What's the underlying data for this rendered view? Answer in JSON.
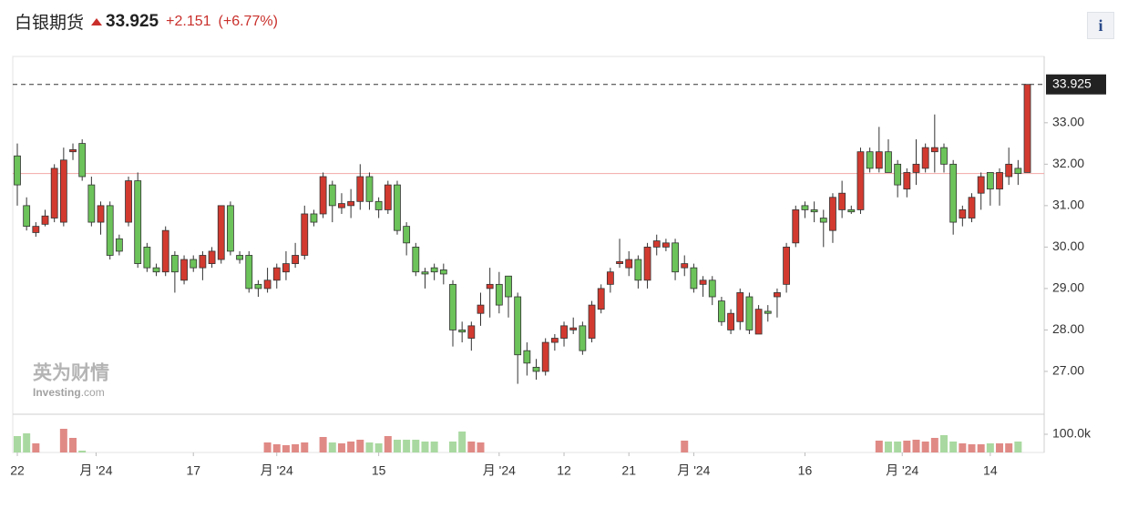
{
  "header": {
    "title": "白银期货",
    "price": "33.925",
    "change": "+2.151",
    "change_pct": "(+6.77%)",
    "info": "i"
  },
  "watermark": {
    "cn": "英为财情",
    "en": "Investing",
    "en_suffix": ".com"
  },
  "chart_data": {
    "type": "candlestick",
    "open": [
      32.2,
      31.0,
      30.35,
      30.55,
      30.7,
      30.6,
      32.3,
      32.5,
      31.5,
      30.6,
      31.0,
      30.2,
      30.6,
      31.6,
      30.0,
      29.5,
      29.4,
      29.8,
      29.2,
      29.7,
      29.5,
      29.6,
      29.7,
      31.0,
      29.8,
      29.8,
      29.1,
      29.0,
      29.2,
      29.4,
      29.6,
      29.8,
      30.8,
      30.8,
      31.5,
      30.95,
      31.0,
      31.1,
      31.7,
      31.1,
      30.9,
      31.5,
      30.5,
      30.0,
      29.4,
      29.5,
      29.45,
      29.1,
      28.0,
      27.8,
      28.4,
      29.0,
      29.1,
      29.3,
      28.8,
      27.5,
      27.1,
      27.0,
      27.7,
      27.8,
      28.0,
      28.1,
      27.8,
      28.5,
      29.1,
      29.6,
      29.5,
      29.7,
      29.2,
      30.0,
      30.0,
      30.1,
      29.5,
      29.5,
      29.1,
      29.2,
      28.7,
      28.0,
      28.2,
      28.8,
      27.9,
      28.45,
      28.8,
      29.1,
      30.1,
      31.0,
      30.9,
      30.7,
      30.4,
      30.9,
      30.9,
      30.9,
      32.3,
      31.9,
      32.3,
      32.0,
      31.4,
      31.8,
      31.9,
      32.3,
      32.4,
      32.0,
      30.7,
      30.7,
      31.3,
      31.8,
      31.4,
      31.7,
      31.9,
      31.8
    ],
    "high": [
      32.5,
      31.2,
      30.6,
      30.9,
      32.0,
      32.4,
      32.5,
      32.6,
      31.7,
      31.1,
      31.1,
      30.3,
      31.7,
      31.8,
      30.1,
      29.6,
      30.5,
      29.9,
      29.8,
      29.8,
      29.9,
      30.0,
      31.0,
      31.1,
      29.9,
      29.9,
      29.2,
      29.5,
      29.6,
      29.9,
      30.1,
      31.0,
      30.9,
      31.8,
      31.6,
      31.3,
      31.4,
      32.0,
      31.8,
      31.2,
      31.6,
      31.6,
      30.6,
      30.1,
      29.5,
      29.6,
      29.6,
      29.2,
      28.2,
      28.2,
      28.9,
      29.5,
      29.4,
      29.3,
      28.9,
      27.7,
      27.3,
      27.8,
      27.9,
      28.2,
      28.3,
      28.2,
      28.7,
      29.1,
      29.5,
      30.2,
      29.9,
      29.8,
      30.1,
      30.3,
      30.2,
      30.2,
      29.8,
      29.6,
      29.3,
      29.3,
      28.8,
      28.5,
      29.0,
      28.9,
      28.6,
      28.6,
      29.0,
      30.1,
      31.0,
      31.1,
      31.1,
      30.9,
      31.3,
      31.6,
      31.0,
      32.4,
      32.4,
      32.9,
      32.6,
      32.1,
      31.9,
      32.6,
      32.5,
      33.2,
      32.5,
      32.1,
      31.0,
      31.3,
      31.8,
      31.8,
      31.9,
      32.4,
      32.1,
      33.925
    ],
    "low": [
      31.0,
      30.4,
      30.25,
      30.5,
      30.6,
      30.5,
      32.1,
      31.6,
      30.5,
      30.3,
      29.7,
      29.8,
      30.5,
      29.5,
      29.4,
      29.3,
      29.3,
      28.9,
      29.1,
      29.4,
      29.2,
      29.5,
      29.6,
      29.8,
      29.6,
      28.9,
      28.8,
      28.9,
      29.0,
      29.2,
      29.5,
      29.7,
      30.5,
      30.7,
      30.6,
      30.8,
      30.7,
      30.9,
      30.9,
      30.7,
      30.8,
      30.3,
      29.8,
      29.3,
      29.0,
      29.2,
      29.1,
      27.6,
      27.7,
      27.5,
      28.1,
      28.3,
      28.4,
      28.3,
      26.7,
      26.9,
      26.8,
      26.9,
      27.5,
      27.6,
      27.9,
      27.4,
      27.7,
      28.4,
      28.9,
      29.5,
      29.3,
      29.0,
      29.0,
      29.8,
      29.9,
      29.2,
      29.3,
      28.9,
      28.8,
      28.6,
      28.1,
      27.9,
      28.0,
      27.9,
      27.9,
      28.2,
      28.3,
      28.9,
      30.0,
      30.7,
      30.6,
      30.0,
      30.1,
      30.7,
      30.8,
      30.8,
      31.8,
      31.8,
      31.8,
      31.2,
      31.2,
      31.5,
      31.8,
      31.8,
      31.8,
      30.3,
      30.5,
      30.6,
      30.9,
      31.0,
      31.0,
      31.5,
      31.5,
      31.8
    ],
    "close": [
      31.5,
      30.5,
      30.5,
      30.75,
      31.9,
      32.1,
      32.35,
      31.7,
      30.6,
      31.0,
      29.8,
      29.9,
      31.6,
      29.6,
      29.5,
      29.4,
      30.4,
      29.4,
      29.7,
      29.5,
      29.8,
      29.9,
      31.0,
      29.9,
      29.7,
      29.0,
      29.0,
      29.2,
      29.5,
      29.6,
      29.8,
      30.8,
      30.6,
      31.7,
      31.0,
      31.05,
      31.1,
      31.7,
      31.1,
      30.9,
      31.5,
      30.4,
      30.1,
      29.4,
      29.35,
      29.4,
      29.35,
      28.0,
      27.95,
      28.1,
      28.6,
      29.1,
      28.6,
      28.8,
      27.4,
      27.2,
      27.0,
      27.7,
      27.8,
      28.1,
      28.05,
      27.5,
      28.6,
      29.0,
      29.4,
      29.65,
      29.7,
      29.2,
      30.0,
      30.15,
      30.1,
      29.4,
      29.6,
      29.0,
      29.2,
      28.8,
      28.2,
      28.4,
      28.9,
      28.0,
      28.5,
      28.4,
      28.9,
      30.0,
      30.9,
      30.9,
      30.85,
      30.6,
      31.2,
      31.3,
      30.85,
      32.3,
      31.9,
      32.3,
      31.8,
      31.5,
      31.8,
      32.0,
      32.4,
      32.4,
      32.0,
      30.6,
      30.9,
      31.2,
      31.7,
      31.4,
      31.8,
      32.0,
      31.774,
      33.925
    ],
    "volume": [
      90000,
      105000,
      50000,
      null,
      null,
      130000,
      80000,
      10000,
      null,
      null,
      null,
      null,
      null,
      null,
      null,
      null,
      null,
      null,
      null,
      null,
      null,
      null,
      null,
      null,
      null,
      null,
      null,
      55000,
      45000,
      40000,
      45000,
      55000,
      null,
      85000,
      55000,
      50000,
      60000,
      70000,
      55000,
      50000,
      90000,
      70000,
      70000,
      70000,
      60000,
      60000,
      null,
      60000,
      115000,
      60000,
      55000,
      null,
      null,
      null,
      null,
      null,
      null,
      null,
      null,
      null,
      null,
      null,
      null,
      null,
      null,
      null,
      null,
      null,
      null,
      null,
      null,
      null,
      65000,
      null,
      null,
      null,
      null,
      null,
      null,
      null,
      null,
      null,
      null,
      null,
      null,
      null,
      null,
      null,
      null,
      null,
      null,
      null,
      null,
      65000,
      60000,
      60000,
      65000,
      70000,
      60000,
      80000,
      95000,
      60000,
      50000,
      45000,
      45000,
      50000,
      50000,
      50000,
      60000,
      null
    ],
    "colors": {
      "up": "#d23a30",
      "down": "#6cc35a",
      "up_volume": "#e08a86",
      "down_volume": "#a9d9a0"
    },
    "ylim": [
      26.01,
      34.6
    ],
    "yticks": [
      {
        "value": 27,
        "label": "27.00"
      },
      {
        "value": 28,
        "label": "28.00"
      },
      {
        "value": 29,
        "label": "29.00"
      },
      {
        "value": 30,
        "label": "30.00"
      },
      {
        "value": 31,
        "label": "31.00"
      },
      {
        "value": 32,
        "label": "32.00"
      },
      {
        "value": 33,
        "label": "33.00"
      }
    ],
    "volume_ylim": [
      0,
      210000
    ],
    "volume_yticks": [
      {
        "value": 100000,
        "label": "100.0k"
      }
    ],
    "xticks": [
      {
        "value": 0,
        "label": "22"
      },
      {
        "value": 8.5,
        "label": "月 '24"
      },
      {
        "value": 19,
        "label": "17"
      },
      {
        "value": 28,
        "label": "月 '24"
      },
      {
        "value": 39,
        "label": "15"
      },
      {
        "value": 52,
        "label": "月 '24"
      },
      {
        "value": 59,
        "label": "12"
      },
      {
        "value": 66,
        "label": "21"
      },
      {
        "value": 73,
        "label": "月 '24"
      },
      {
        "value": 85,
        "label": "16"
      },
      {
        "value": 95.5,
        "label": "月 '24"
      },
      {
        "value": 105,
        "label": "14"
      }
    ]
  }
}
